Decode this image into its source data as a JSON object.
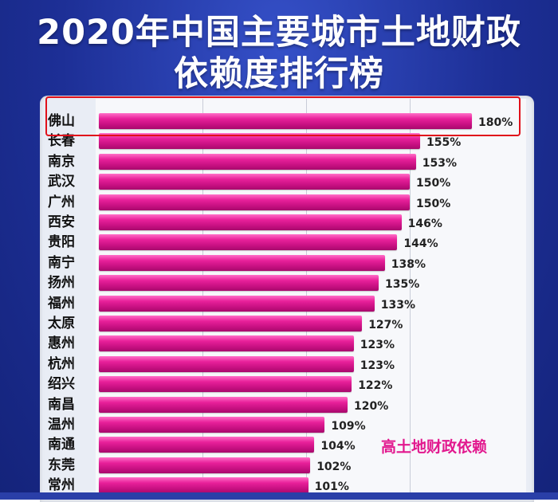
{
  "title": {
    "line1": "2020年中国主要城市土地财政",
    "line2": "依赖度排行榜"
  },
  "annotation": "高土地财政依赖",
  "colors": {
    "background": "#1d2f96",
    "bar": "#e8209a",
    "highlight_box": "#e0101a",
    "annotation": "#e2188e"
  },
  "chart_data": {
    "type": "bar",
    "orientation": "horizontal",
    "title": "2020年中国主要城市土地财政依赖度排行榜",
    "unit": "%",
    "highlighted_category": "佛山",
    "categories": [
      "佛山",
      "长春",
      "南京",
      "武汉",
      "广州",
      "西安",
      "贵阳",
      "南宁",
      "扬州",
      "福州",
      "太原",
      "惠州",
      "杭州",
      "绍兴",
      "南昌",
      "温州",
      "南通",
      "东莞",
      "常州"
    ],
    "values": [
      180,
      155,
      153,
      150,
      150,
      146,
      144,
      138,
      135,
      133,
      127,
      123,
      123,
      122,
      120,
      109,
      104,
      102,
      101
    ],
    "labels": [
      "180%",
      "155%",
      "153%",
      "150%",
      "150%",
      "146%",
      "144%",
      "138%",
      "135%",
      "133%",
      "127%",
      "123%",
      "123%",
      "122%",
      "120%",
      "109%",
      "104%",
      "102%",
      "101%"
    ]
  }
}
